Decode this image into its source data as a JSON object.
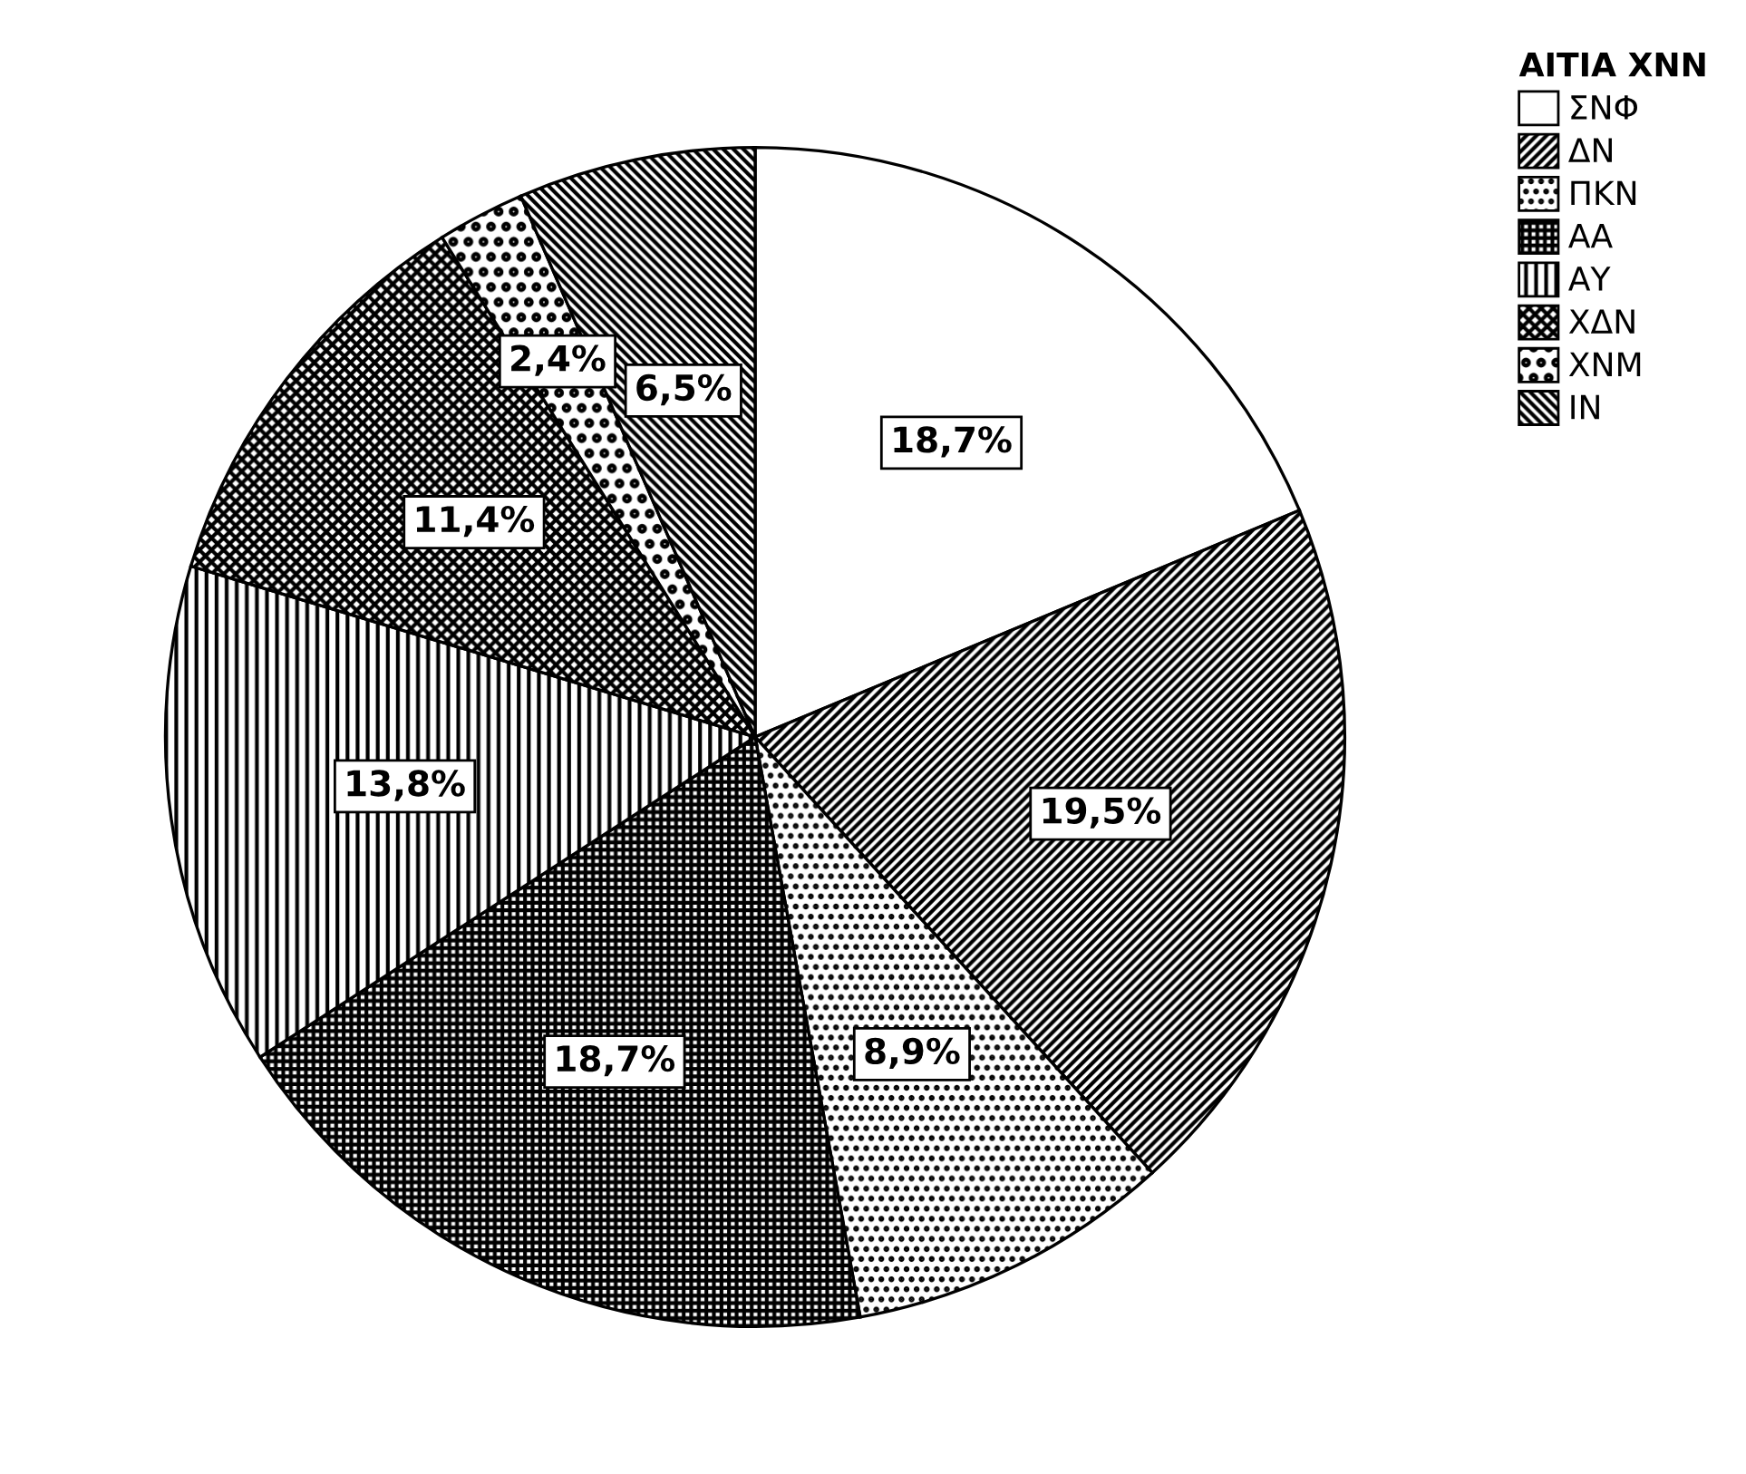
{
  "chart_data": {
    "type": "pie",
    "legend_title": "ΑΙΤΙΑ ΧΝΝ",
    "categories": [
      "ΣΝΦ",
      "ΔΝ",
      "ΠΚΝ",
      "ΑΑ",
      "ΑΥ",
      "ΧΔΝ",
      "ΧΝΜ",
      "ΙΝ"
    ],
    "values": [
      18.7,
      19.5,
      8.9,
      18.7,
      13.8,
      11.4,
      2.4,
      6.5
    ],
    "value_labels": [
      "18,7%",
      "19,5%",
      "8,9%",
      "18,7%",
      "13,8%",
      "11,4%",
      "2,4%",
      "6,5%"
    ],
    "colors": [
      "#ffffff",
      "#000000",
      "#000000",
      "#000000",
      "#000000",
      "#000000",
      "#000000",
      "#000000"
    ],
    "legend": "top right"
  }
}
